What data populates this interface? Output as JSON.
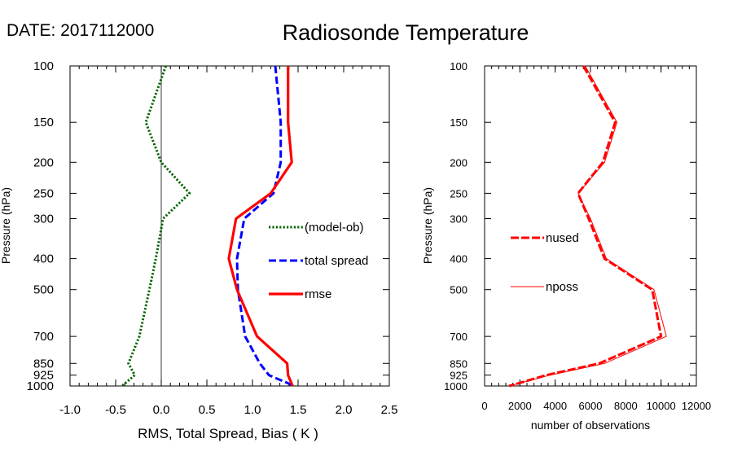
{
  "header": {
    "date": "DATE: 2017112000",
    "title": "Radiosonde Temperature"
  },
  "chart_data": [
    {
      "type": "line",
      "xlabel": "RMS, Total Spread, Bias ( K )",
      "ylabel": "Pressure (hPa)",
      "xlim": [
        -1.0,
        2.5
      ],
      "ylim": [
        1000,
        100
      ],
      "y_scale": "log",
      "x_ticks": [
        "-1.0",
        "-0.5",
        "0.0",
        "0.5",
        "1.0",
        "1.5",
        "2.0",
        "2.5"
      ],
      "y_ticks": [
        "100",
        "150",
        "200",
        "250",
        "300",
        "400",
        "500",
        "700",
        "850",
        "925",
        "1000"
      ],
      "grid": false,
      "legend_position": "center-right",
      "y": [
        100,
        150,
        200,
        250,
        300,
        400,
        500,
        700,
        850,
        925,
        1000
      ],
      "series": [
        {
          "name": "(model-ob)",
          "color": "#006400",
          "style": "dotted",
          "values": [
            0.05,
            -0.17,
            0.0,
            0.31,
            0.02,
            -0.06,
            -0.13,
            -0.24,
            -0.36,
            -0.29,
            -0.43
          ]
        },
        {
          "name": "total spread",
          "color": "#0000ff",
          "style": "dashed",
          "values": [
            1.25,
            1.31,
            1.31,
            1.23,
            0.91,
            0.83,
            0.84,
            0.92,
            1.08,
            1.18,
            1.46
          ]
        },
        {
          "name": "rmse",
          "color": "#ff0000",
          "style": "solid",
          "values": [
            1.39,
            1.39,
            1.43,
            1.2,
            0.82,
            0.74,
            0.83,
            1.05,
            1.38,
            1.39,
            1.44
          ]
        }
      ]
    },
    {
      "type": "line",
      "xlabel": "number of observations",
      "ylabel": "Pressure (hPa)",
      "xlim": [
        0,
        12000
      ],
      "ylim": [
        1000,
        100
      ],
      "y_scale": "log",
      "x_ticks": [
        "0",
        "2000",
        "4000",
        "6000",
        "8000",
        "10000",
        "12000"
      ],
      "y_ticks": [
        "100",
        "150",
        "200",
        "250",
        "300",
        "400",
        "500",
        "700",
        "850",
        "925",
        "1000"
      ],
      "grid": false,
      "legend_position": "center-left",
      "y": [
        100,
        150,
        200,
        250,
        300,
        400,
        500,
        700,
        850,
        925,
        1000
      ],
      "series": [
        {
          "name": "nused",
          "color": "#ff0000",
          "style": "thick-dashed",
          "values": [
            5600,
            7400,
            6700,
            5300,
            5900,
            6800,
            9500,
            10000,
            6500,
            3500,
            1400
          ]
        },
        {
          "name": "nposs",
          "color": "#ff0000",
          "style": "thin-solid",
          "values": [
            5700,
            7500,
            6800,
            5300,
            6000,
            6900,
            9600,
            10300,
            6800,
            3700,
            1400
          ]
        }
      ]
    }
  ]
}
